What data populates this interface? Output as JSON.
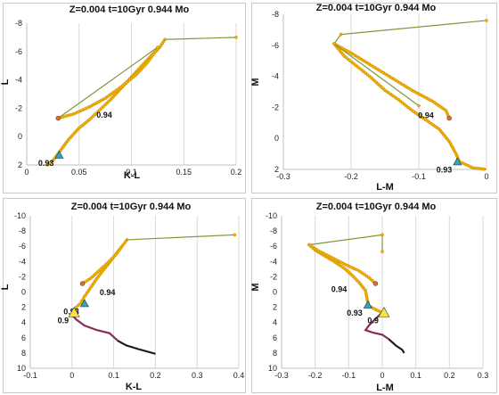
{
  "colors": {
    "track_line": "#7a9a3a",
    "track_marker": "#f2b400",
    "track_marker_edge": "#c98a00",
    "rgb_marker": "#d9702f",
    "rgb_end_marker": "#7a3b2e",
    "triangle_cyan": "#2aa6c4",
    "triangle_yellow": "#f7e04a",
    "lower_branch": "#8a2a5a",
    "lower_branch_dark": "#1a1a1a"
  },
  "chart_data": [
    {
      "type": "scatter",
      "title": "Z=0.004  t=10Gyr 0.944 Mo",
      "xlabel": "K-L",
      "ylabel": "L",
      "xlim": [
        0,
        0.2
      ],
      "ylim": [
        2,
        -8
      ],
      "y_inverted": true,
      "x_ticks": [
        "0",
        "0.05",
        "0.1",
        "0.15",
        "0.2"
      ],
      "y_ticks": [
        "-8",
        "-6",
        "-4",
        "-2",
        "0",
        "2"
      ],
      "grid": "x-only",
      "series": [
        {
          "style": "track",
          "points": [
            [
              0.132,
              -6.85
            ],
            [
              0.2,
              -7.0
            ]
          ]
        },
        {
          "style": "track-dense",
          "points": [
            [
              0.02,
              2.0
            ],
            [
              0.025,
              1.7
            ],
            [
              0.03,
              1.2
            ],
            [
              0.04,
              0.2
            ],
            [
              0.05,
              -0.6
            ],
            [
              0.06,
              -1.2
            ],
            [
              0.07,
              -1.9
            ],
            [
              0.08,
              -2.6
            ],
            [
              0.09,
              -3.4
            ],
            [
              0.1,
              -4.2
            ],
            [
              0.11,
              -5.0
            ],
            [
              0.12,
              -5.8
            ],
            [
              0.127,
              -6.3
            ],
            [
              0.132,
              -6.85
            ]
          ]
        },
        {
          "style": "track-dense",
          "points": [
            [
              0.03,
              -1.3
            ],
            [
              0.045,
              -1.6
            ],
            [
              0.06,
              -2.1
            ],
            [
              0.075,
              -2.7
            ],
            [
              0.09,
              -3.5
            ],
            [
              0.105,
              -4.4
            ],
            [
              0.115,
              -5.2
            ],
            [
              0.122,
              -5.9
            ],
            [
              0.127,
              -6.3
            ]
          ]
        },
        {
          "style": "track",
          "points": [
            [
              0.03,
              -1.3
            ],
            [
              0.125,
              -6.3
            ]
          ]
        },
        {
          "style": "rgb-end",
          "points": [
            [
              0.03,
              -1.3
            ]
          ]
        }
      ],
      "markers": [
        {
          "shape": "triangle",
          "color": "cyan",
          "x": 0.031,
          "y": 1.3,
          "label": "0.93"
        },
        {
          "shape": "none",
          "x": 0.064,
          "y": -2.1,
          "label": "0.94"
        }
      ]
    },
    {
      "type": "scatter",
      "title": "Z=0.004  t=10Gyr 0.944 Mo",
      "xlabel": "L-M",
      "ylabel": "M",
      "xlim": [
        -0.3,
        0
      ],
      "ylim": [
        2,
        -8
      ],
      "y_inverted": true,
      "x_ticks": [
        "-0.3",
        "-0.2",
        "-0.1",
        "0"
      ],
      "y_ticks": [
        "-8",
        "-6",
        "-4",
        "-2",
        "0",
        "2"
      ],
      "grid": "x-only",
      "series": [
        {
          "style": "track",
          "points": [
            [
              -0.215,
              -6.7
            ],
            [
              0.0,
              -7.6
            ]
          ]
        },
        {
          "style": "track",
          "points": [
            [
              -0.225,
              -6.1
            ],
            [
              -0.215,
              -6.7
            ]
          ]
        },
        {
          "style": "track-dense",
          "points": [
            [
              -0.225,
              -6.1
            ],
            [
              -0.21,
              -5.3
            ],
            [
              -0.19,
              -4.6
            ],
            [
              -0.17,
              -3.9
            ],
            [
              -0.15,
              -3.1
            ],
            [
              -0.13,
              -2.5
            ],
            [
              -0.11,
              -1.8
            ],
            [
              -0.09,
              -1.2
            ],
            [
              -0.07,
              -0.6
            ],
            [
              -0.055,
              0.2
            ],
            [
              -0.045,
              1.0
            ],
            [
              -0.04,
              1.5
            ],
            [
              -0.02,
              1.9
            ],
            [
              0.0,
              2.0
            ]
          ]
        },
        {
          "style": "track-dense",
          "points": [
            [
              -0.225,
              -6.1
            ],
            [
              -0.2,
              -5.5
            ],
            [
              -0.17,
              -4.7
            ],
            [
              -0.14,
              -3.9
            ],
            [
              -0.11,
              -3.1
            ],
            [
              -0.08,
              -2.4
            ],
            [
              -0.06,
              -1.8
            ],
            [
              -0.055,
              -1.3
            ]
          ]
        },
        {
          "style": "track",
          "points": [
            [
              -0.225,
              -6.1
            ],
            [
              -0.1,
              -2.1
            ]
          ]
        },
        {
          "style": "rgb-end",
          "points": [
            [
              -0.055,
              -1.3
            ]
          ]
        }
      ],
      "markers": [
        {
          "shape": "triangle",
          "color": "cyan",
          "x": -0.043,
          "y": 1.5,
          "label": "0.93"
        },
        {
          "shape": "none",
          "x": -0.105,
          "y": -2.0,
          "label": "0.94"
        }
      ]
    },
    {
      "type": "scatter",
      "title": "Z=0.004  t=10Gyr 0.944 Mo",
      "xlabel": "K-L",
      "ylabel": "L",
      "xlim": [
        -0.1,
        0.4
      ],
      "ylim": [
        10,
        -10
      ],
      "y_inverted": true,
      "x_ticks": [
        "-0.1",
        "0",
        "0.1",
        "0.2",
        "0.3",
        "0.4"
      ],
      "y_ticks": [
        "-10",
        "-8",
        "-6",
        "-4",
        "-2",
        "0",
        "2",
        "4",
        "6",
        "8",
        "10"
      ],
      "grid": "x-only",
      "series": [
        {
          "style": "track",
          "points": [
            [
              0.132,
              -6.85
            ],
            [
              0.39,
              -7.5
            ]
          ]
        },
        {
          "style": "track-dense",
          "points": [
            [
              0.0,
              3.0
            ],
            [
              0.005,
              2.5
            ],
            [
              0.01,
              2.0
            ],
            [
              0.02,
              1.5
            ],
            [
              0.03,
              0.6
            ],
            [
              0.045,
              -0.6
            ],
            [
              0.06,
              -1.8
            ],
            [
              0.08,
              -3.2
            ],
            [
              0.1,
              -4.6
            ],
            [
              0.117,
              -5.8
            ],
            [
              0.132,
              -6.85
            ]
          ]
        },
        {
          "style": "track-dense",
          "points": [
            [
              0.025,
              -1.1
            ],
            [
              0.045,
              -1.8
            ],
            [
              0.065,
              -2.8
            ],
            [
              0.085,
              -3.8
            ],
            [
              0.105,
              -4.9
            ],
            [
              0.12,
              -6.0
            ]
          ]
        },
        {
          "style": "rgb-end",
          "points": [
            [
              0.025,
              -1.1
            ]
          ]
        },
        {
          "style": "lower",
          "points": [
            [
              0.0,
              3.0
            ],
            [
              0.01,
              3.6
            ],
            [
              0.03,
              4.4
            ],
            [
              0.06,
              5.0
            ],
            [
              0.09,
              5.4
            ],
            [
              0.1,
              5.9
            ],
            [
              0.11,
              6.4
            ],
            [
              0.13,
              7.0
            ],
            [
              0.16,
              7.5
            ],
            [
              0.2,
              8.1
            ]
          ]
        }
      ],
      "markers": [
        {
          "shape": "triangle",
          "color": "cyan",
          "x": 0.03,
          "y": 1.5,
          "label": "0.93"
        },
        {
          "shape": "triangle",
          "color": "yellow",
          "x": 0.005,
          "y": 2.7,
          "label": "0.9"
        },
        {
          "shape": "none",
          "x": 0.06,
          "y": -1.0,
          "label": "0.94"
        }
      ]
    },
    {
      "type": "scatter",
      "title": "Z=0.004  t=10Gyr 0.944 Mo",
      "xlabel": "L-M",
      "ylabel": "M",
      "xlim": [
        -0.3,
        0.3
      ],
      "ylim": [
        10,
        -10
      ],
      "y_inverted": true,
      "x_ticks": [
        "-0.3",
        "-0.2",
        "-0.1",
        "0",
        "0.1",
        "0.2",
        "0.3"
      ],
      "y_ticks": [
        "-10",
        "-8",
        "-6",
        "-4",
        "-2",
        "0",
        "2",
        "4",
        "6",
        "8",
        "10"
      ],
      "grid": "x-only",
      "series": [
        {
          "style": "track",
          "points": [
            [
              -0.218,
              -6.2
            ],
            [
              0.0,
              -7.5
            ]
          ]
        },
        {
          "style": "track",
          "points": [
            [
              0.0,
              -7.5
            ],
            [
              0.0,
              -5.3
            ]
          ]
        },
        {
          "style": "track-dense",
          "points": [
            [
              -0.218,
              -6.2
            ],
            [
              -0.2,
              -5.5
            ],
            [
              -0.17,
              -4.7
            ],
            [
              -0.14,
              -3.9
            ],
            [
              -0.11,
              -3.0
            ],
            [
              -0.09,
              -2.2
            ],
            [
              -0.07,
              -1.3
            ],
            [
              -0.05,
              -0.2
            ],
            [
              -0.045,
              1.0
            ],
            [
              -0.04,
              1.8
            ],
            [
              -0.02,
              2.3
            ],
            [
              0.0,
              2.7
            ]
          ]
        },
        {
          "style": "track-dense",
          "points": [
            [
              -0.218,
              -6.2
            ],
            [
              -0.19,
              -5.4
            ],
            [
              -0.15,
              -4.5
            ],
            [
              -0.11,
              -3.6
            ],
            [
              -0.07,
              -2.8
            ],
            [
              -0.04,
              -1.9
            ],
            [
              -0.02,
              -1.1
            ]
          ]
        },
        {
          "style": "rgb-end",
          "points": [
            [
              -0.02,
              -1.1
            ]
          ]
        },
        {
          "style": "lower",
          "points": [
            [
              0.0,
              2.7
            ],
            [
              -0.02,
              3.5
            ],
            [
              -0.04,
              4.4
            ],
            [
              -0.05,
              5.0
            ],
            [
              -0.03,
              5.3
            ],
            [
              0.0,
              5.6
            ],
            [
              0.02,
              6.2
            ],
            [
              0.04,
              7.0
            ],
            [
              0.06,
              7.6
            ],
            [
              0.065,
              8.0
            ]
          ]
        }
      ],
      "markers": [
        {
          "shape": "triangle",
          "color": "cyan",
          "x": -0.043,
          "y": 1.7,
          "label": "0.93"
        },
        {
          "shape": "triangle",
          "color": "yellow",
          "x": 0.005,
          "y": 2.7,
          "label": "0.9"
        },
        {
          "shape": "none",
          "x": -0.16,
          "y": -1.4,
          "label": "0.94"
        }
      ]
    }
  ]
}
